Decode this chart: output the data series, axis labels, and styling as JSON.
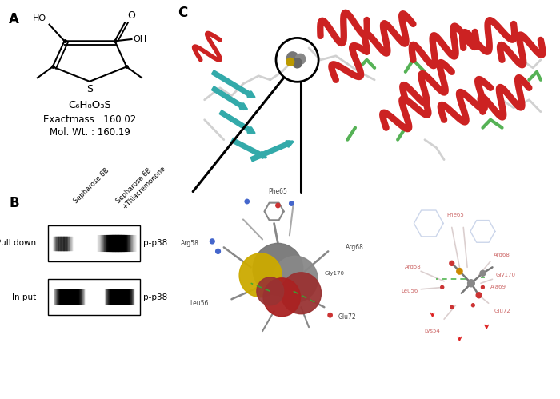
{
  "panel_labels": [
    "A",
    "B",
    "C"
  ],
  "panel_A": {
    "formula": "C₆H₈O₃S",
    "exact_mass": "Exactmass : 160.02",
    "mol_wt": "Mol. Wt. : 160.19"
  },
  "panel_B": {
    "col_labels": [
      "Sepharose 6B",
      "Sepharose 6B\n+Thiacremonone"
    ],
    "row_labels": [
      "Pull down",
      "In put"
    ],
    "antibody_labels": [
      "p-p38",
      "p-p38"
    ]
  },
  "background_color": "#ffffff",
  "panel_label_fontsize": 12,
  "text_fontsize": 8
}
